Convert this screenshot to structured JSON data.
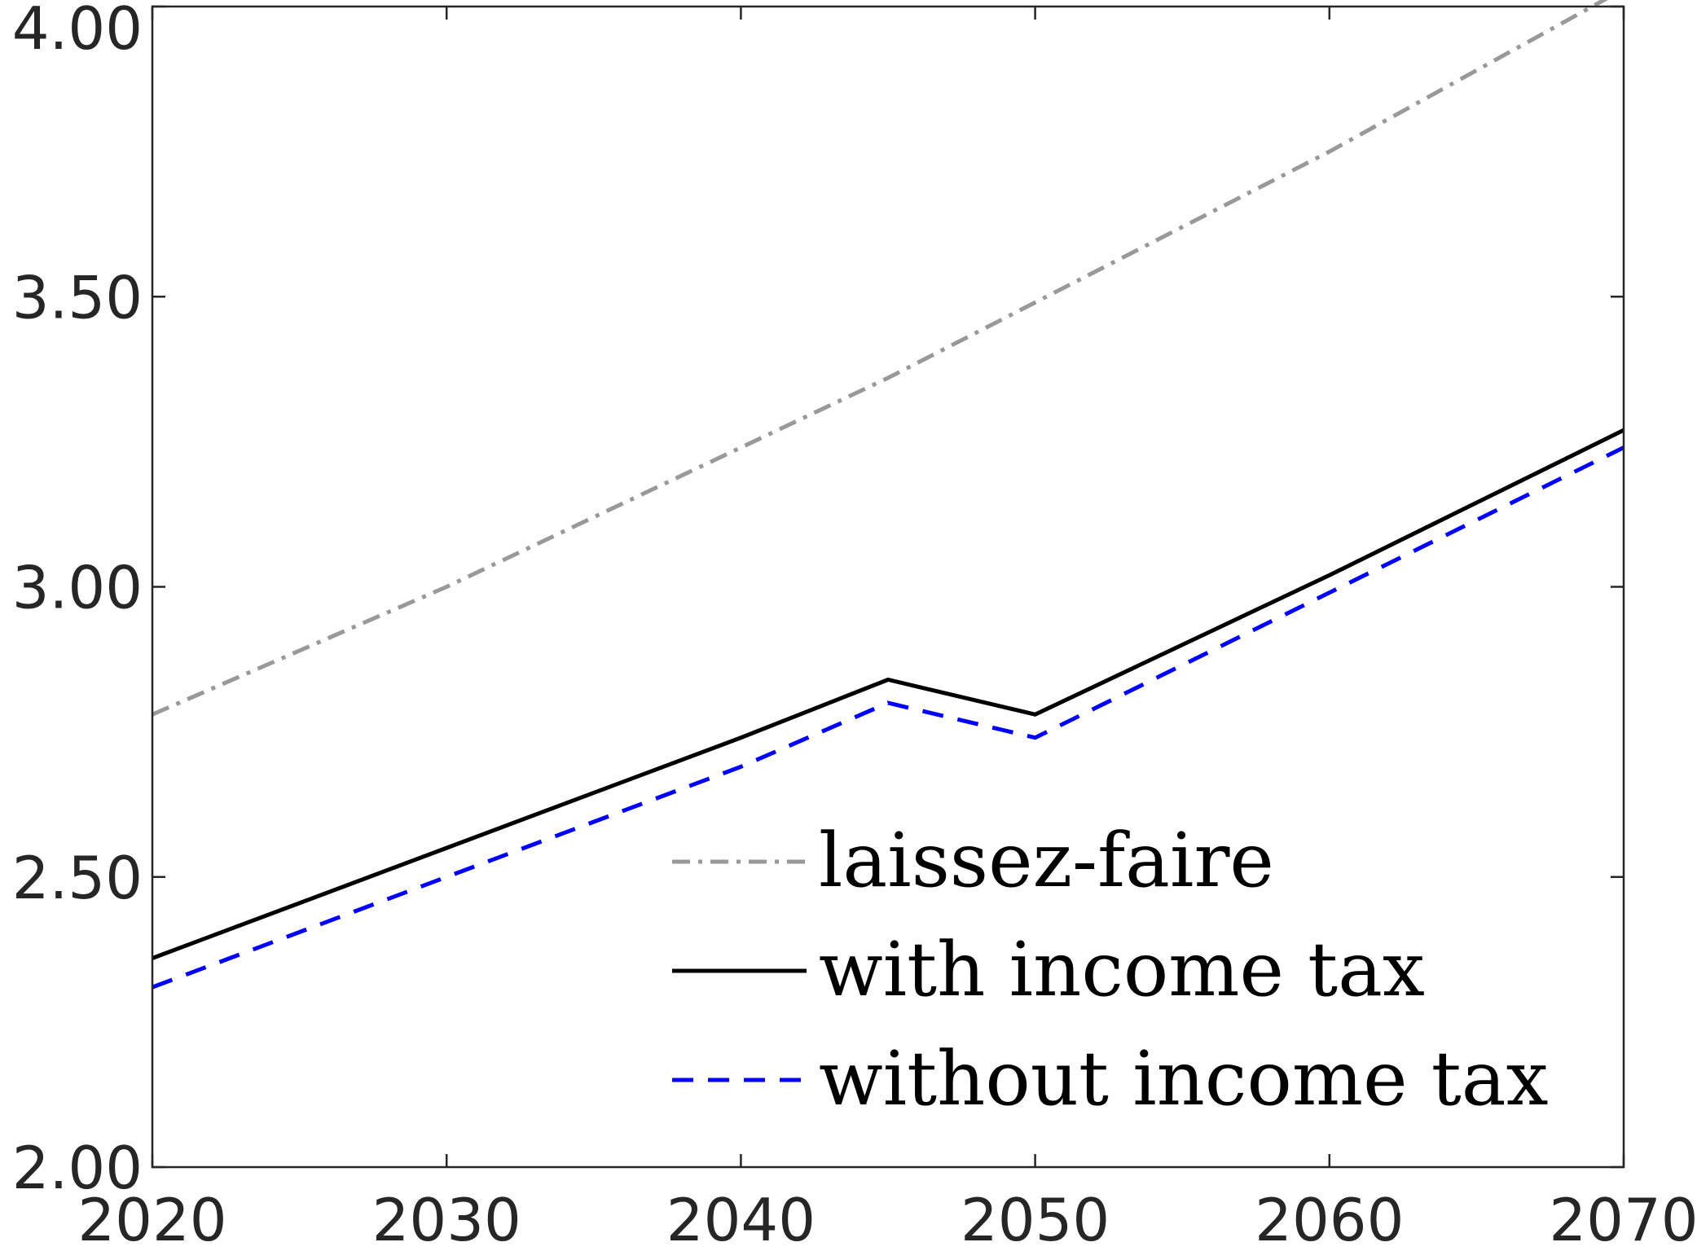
{
  "chart_data": {
    "type": "line",
    "title": "",
    "xlabel": "",
    "ylabel": "",
    "xlim": [
      2020,
      2070
    ],
    "ylim": [
      2.0,
      4.0
    ],
    "x_ticks": [
      2020,
      2030,
      2040,
      2050,
      2060,
      2070
    ],
    "x_tick_labels": [
      "2020",
      "2030",
      "2040",
      "2050",
      "2060",
      "2070"
    ],
    "y_ticks": [
      2.0,
      2.5,
      3.0,
      3.5,
      4.0
    ],
    "y_tick_labels": [
      "2.00",
      "2.50",
      "3.00",
      "3.50",
      "4.00"
    ],
    "grid": false,
    "legend_position": "bottom-right",
    "series": [
      {
        "name": "laissez-faire",
        "color": "#999999",
        "dash": "dash-dot",
        "x": [
          2020,
          2025,
          2030,
          2035,
          2040,
          2045,
          2050,
          2055,
          2060,
          2065,
          2070
        ],
        "y": [
          2.78,
          2.89,
          3.0,
          3.12,
          3.24,
          3.36,
          3.49,
          3.62,
          3.75,
          3.89,
          4.03
        ]
      },
      {
        "name": "with income tax",
        "color": "#000000",
        "dash": "solid",
        "x": [
          2020,
          2030,
          2040,
          2045,
          2050,
          2060,
          2070
        ],
        "y": [
          2.36,
          2.55,
          2.74,
          2.84,
          2.78,
          3.02,
          3.27
        ]
      },
      {
        "name": "without income tax",
        "color": "#0000ff",
        "dash": "dashed",
        "x": [
          2020,
          2030,
          2040,
          2045,
          2050,
          2060,
          2070
        ],
        "y": [
          2.31,
          2.5,
          2.69,
          2.8,
          2.74,
          2.99,
          3.24
        ]
      }
    ]
  }
}
